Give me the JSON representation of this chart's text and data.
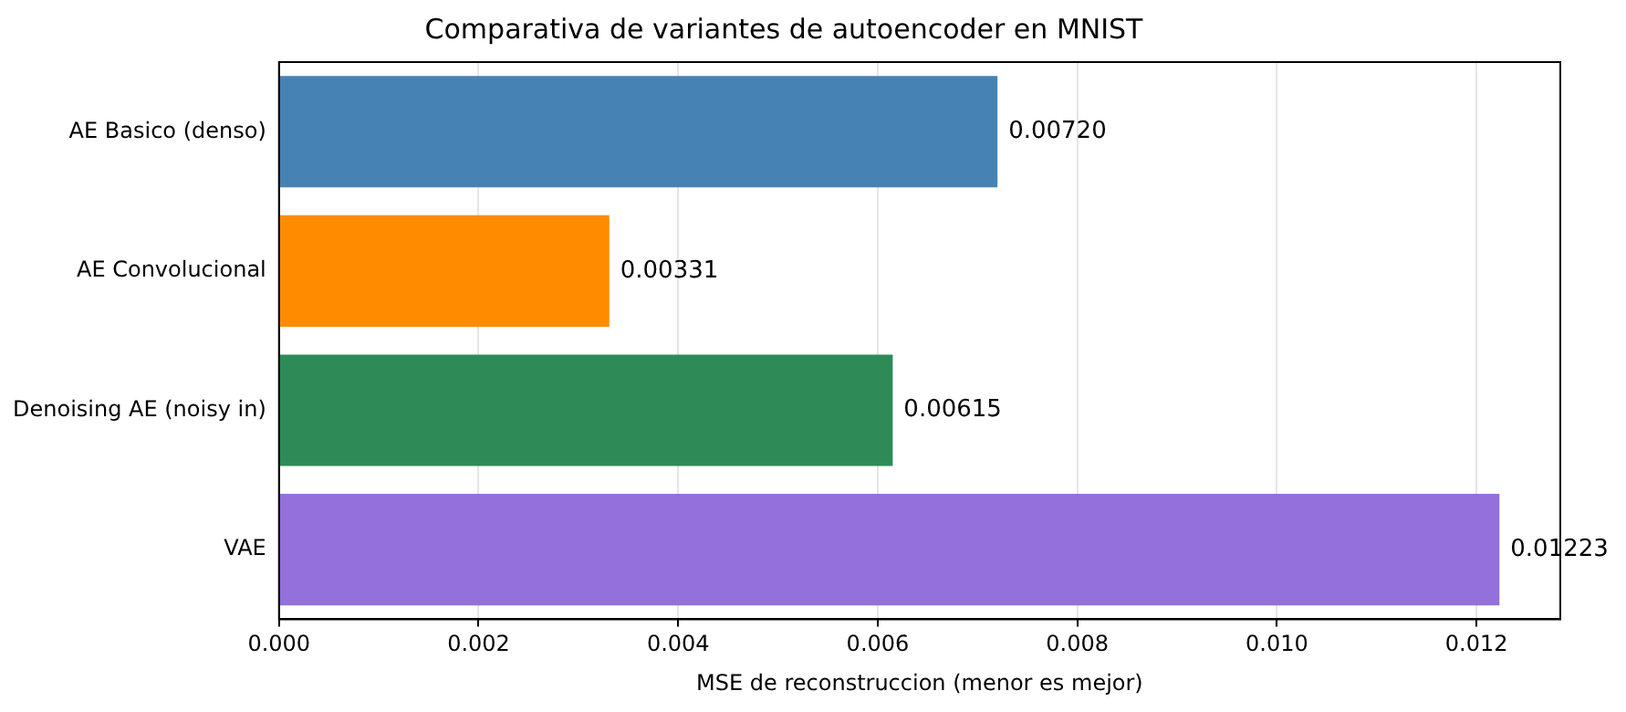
{
  "chart_data": {
    "type": "bar",
    "orientation": "horizontal",
    "title": "Comparativa de variantes de autoencoder en MNIST",
    "xlabel": "MSE de reconstruccion (menor es mejor)",
    "categories": [
      "AE Basico (denso)",
      "AE Convolucional",
      "Denoising AE (noisy in)",
      "VAE"
    ],
    "values": [
      0.0072,
      0.00331,
      0.00615,
      0.01223
    ],
    "colors": [
      "#4682b4",
      "#ff8c00",
      "#2e8b57",
      "#9370db"
    ],
    "value_labels": [
      "0.00720",
      "0.00331",
      "0.00615",
      "0.01223"
    ],
    "xlim": [
      0,
      0.01284
    ],
    "xticks": [
      {
        "value": 0,
        "label": "0.000"
      },
      {
        "value": 0.002,
        "label": "0.002"
      },
      {
        "value": 0.004,
        "label": "0.004"
      },
      {
        "value": 0.006,
        "label": "0.006"
      },
      {
        "value": 0.008,
        "label": "0.008"
      },
      {
        "value": 0.01,
        "label": "0.010"
      },
      {
        "value": 0.012,
        "label": "0.012"
      }
    ],
    "grid": "x",
    "legend": false
  }
}
